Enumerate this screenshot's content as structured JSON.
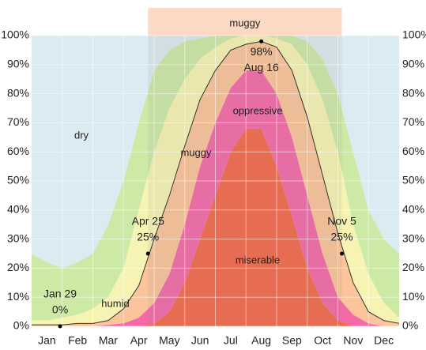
{
  "chart_data": {
    "type": "stacked_area",
    "x": [
      0,
      0.5,
      1,
      1.5,
      2,
      2.5,
      3,
      3.5,
      4,
      4.5,
      5,
      5.5,
      6,
      6.5,
      7,
      7.5,
      8,
      8.5,
      9,
      9.5,
      10,
      10.5,
      11,
      11.5,
      12
    ],
    "xlim": [
      0,
      12
    ],
    "categories": [
      "Jan",
      "Feb",
      "Mar",
      "Apr",
      "May",
      "Jun",
      "Jul",
      "Aug",
      "Sep",
      "Oct",
      "Nov",
      "Dec"
    ],
    "ylim": [
      0,
      100
    ],
    "yticks": [
      {
        "value": 0,
        "label": "0%"
      },
      {
        "value": 10,
        "label": "10%"
      },
      {
        "value": 20,
        "label": "20%"
      },
      {
        "value": 30,
        "label": "30%"
      },
      {
        "value": 40,
        "label": "40%"
      },
      {
        "value": 50,
        "label": "50%"
      },
      {
        "value": 60,
        "label": "60%"
      },
      {
        "value": 70,
        "label": "70%"
      },
      {
        "value": 80,
        "label": "80%"
      },
      {
        "value": 90,
        "label": "90%"
      },
      {
        "value": 100,
        "label": "100%"
      }
    ],
    "grid": true,
    "series": [
      {
        "name": "miserable",
        "color": "#f4694a",
        "values": [
          0,
          0,
          0,
          0,
          0,
          0,
          0,
          0,
          1,
          5,
          15,
          30,
          45,
          60,
          68,
          68,
          55,
          38,
          20,
          8,
          2,
          0,
          0,
          0,
          0
        ]
      },
      {
        "name": "oppressive",
        "color": "#f46aa8",
        "values": [
          0,
          0,
          0,
          0,
          0,
          0.5,
          1,
          3,
          7,
          13,
          20,
          25,
          25,
          22,
          20,
          20,
          25,
          27,
          25,
          17,
          8,
          4,
          1,
          0,
          0
        ]
      },
      {
        "name": "muggy",
        "color": "#fbc49a",
        "values": [
          0.5,
          0.5,
          0.5,
          1,
          1,
          1.5,
          5,
          11,
          22,
          27,
          27,
          23,
          18,
          13,
          9,
          10,
          16,
          23,
          27,
          27,
          22,
          11,
          4,
          2,
          1
        ]
      },
      {
        "name": "humid",
        "color": "#f7f4b3",
        "values": [
          1.5,
          1.5,
          2.5,
          3,
          5,
          8,
          14,
          26,
          30,
          30,
          23,
          14,
          8,
          4,
          3,
          2,
          3,
          9,
          18,
          26,
          28,
          20,
          13,
          6,
          2
        ]
      },
      {
        "color": "#cce9a6",
        "values": [
          23,
          20,
          17,
          18,
          19,
          25,
          30,
          30,
          28,
          20,
          13,
          7,
          4,
          1,
          0,
          0,
          1,
          3,
          8,
          14,
          20,
          25,
          22,
          22,
          22
        ]
      },
      {
        "name": "dry",
        "color": "#dbebf2",
        "values": [
          75,
          78,
          80,
          78,
          75,
          65,
          50,
          30,
          12,
          5,
          2,
          1,
          0,
          0,
          0,
          0,
          0,
          0,
          2,
          8,
          20,
          40,
          60,
          70,
          75
        ]
      }
    ],
    "line_values": [
      0.5,
      0.5,
      0.5,
      1,
      1,
      2,
      6,
      14,
      30,
      45,
      62,
      78,
      88,
      95,
      97,
      98,
      96,
      88,
      72,
      52,
      32,
      15,
      5,
      2,
      1
    ],
    "annotations": [
      {
        "x": 0.93,
        "value": 0,
        "date": "Jan 29",
        "value_label": "0%"
      },
      {
        "x": 3.8,
        "value": 25,
        "date": "Apr 25",
        "value_label": "25%"
      },
      {
        "x": 7.5,
        "value": 98,
        "date": "Aug 16",
        "value_label": "98%"
      },
      {
        "x": 10.13,
        "value": 25,
        "date": "Nov 5",
        "value_label": "25%"
      }
    ],
    "top_band": {
      "label": "muggy",
      "x": [
        3.8,
        10.13
      ],
      "color": "#fbd9c4"
    }
  }
}
